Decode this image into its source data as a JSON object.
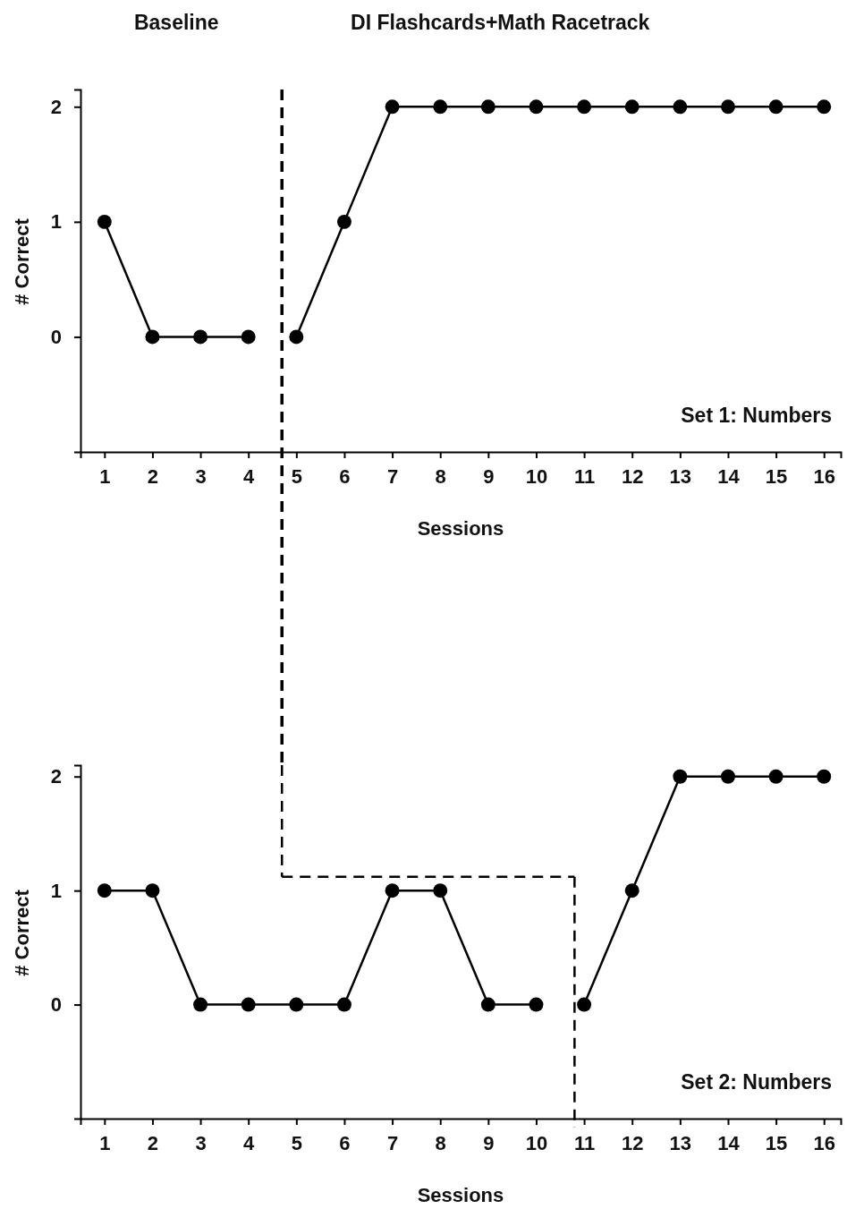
{
  "chart_data": [
    {
      "type": "line",
      "annotations": [
        "Baseline",
        "DI Flashcards+Math Racetrack",
        "Set 1: Numbers"
      ],
      "xlabel": "Sessions",
      "ylabel": "# Correct",
      "xlim": [
        0.5,
        16.35
      ],
      "xticks": [
        1,
        2,
        3,
        4,
        5,
        6,
        7,
        8,
        9,
        10,
        11,
        12,
        13,
        14,
        15,
        16
      ],
      "ylim": [
        -1,
        2.15
      ],
      "yticks": [
        0,
        1,
        2
      ],
      "marker": "circle",
      "line_style": "solid",
      "grid": false,
      "series": [
        {
          "color": "#000000",
          "x": [
            1,
            2,
            3,
            4
          ],
          "values": [
            1,
            0,
            0,
            0
          ]
        },
        {
          "color": "#000000",
          "x": [
            5,
            6,
            7,
            8,
            9,
            10,
            11,
            12,
            13,
            14,
            15,
            16
          ],
          "values": [
            0,
            1,
            2,
            2,
            2,
            2,
            2,
            2,
            2,
            2,
            2,
            2
          ]
        }
      ],
      "ref_lines": [
        {
          "axis": "x",
          "value": 4.7,
          "line_style": "dashed",
          "color": "#000000"
        }
      ]
    },
    {
      "type": "line",
      "annotations": [
        "Set 2: Numbers"
      ],
      "xlabel": "Sessions",
      "ylabel": "# Correct",
      "xlim": [
        0.5,
        16.35
      ],
      "xticks": [
        1,
        2,
        3,
        4,
        5,
        6,
        7,
        8,
        9,
        10,
        11,
        12,
        13,
        14,
        15,
        16
      ],
      "ylim": [
        -1,
        2.1
      ],
      "yticks": [
        0,
        1,
        2
      ],
      "marker": "circle",
      "line_style": "solid",
      "grid": false,
      "series": [
        {
          "color": "#000000",
          "x": [
            1,
            2,
            3,
            4,
            5,
            6,
            7,
            8,
            9,
            10
          ],
          "values": [
            1,
            1,
            0,
            0,
            0,
            0,
            1,
            1,
            0,
            0
          ]
        },
        {
          "color": "#000000",
          "x": [
            11,
            12,
            13,
            14,
            15,
            16
          ],
          "values": [
            0,
            1,
            2,
            2,
            2,
            2
          ]
        }
      ],
      "ref_lines": [
        {
          "axis": "x",
          "value": 4.7,
          "line_style": "dashed",
          "color": "#000000"
        },
        {
          "axis": "y",
          "value": 1.12,
          "line_style": "dashed",
          "color": "#000000"
        },
        {
          "axis": "x",
          "value": 10.8,
          "line_style": "dashed",
          "color": "#000000"
        }
      ]
    }
  ]
}
